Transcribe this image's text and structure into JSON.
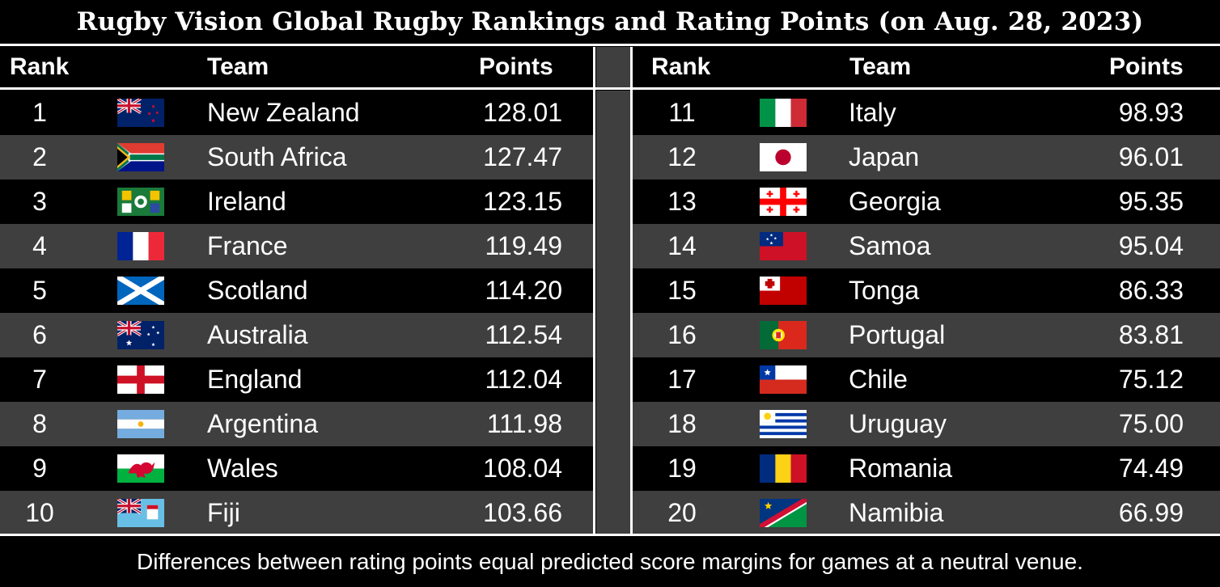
{
  "title": "Rugby Vision Global Rugby Rankings and Rating Points (on Aug. 28, 2023)",
  "headers": {
    "rank": "Rank",
    "team": "Team",
    "points": "Points"
  },
  "footer": "Differences between rating points equal predicted score margins for games at a neutral venue.",
  "colors": {
    "background": "#000000",
    "alt_row": "#3f3f3f",
    "text": "#ffffff"
  },
  "chart_data": {
    "type": "table",
    "columns": [
      "Rank",
      "Team",
      "Points"
    ],
    "rows": [
      {
        "rank": "1",
        "team": "New Zealand",
        "points": "128.01",
        "flag": "new-zealand-flag-icon"
      },
      {
        "rank": "2",
        "team": "South Africa",
        "points": "127.47",
        "flag": "south-africa-flag-icon"
      },
      {
        "rank": "3",
        "team": "Ireland",
        "points": "123.15",
        "flag": "ireland-flag-icon"
      },
      {
        "rank": "4",
        "team": "France",
        "points": "119.49",
        "flag": "france-flag-icon"
      },
      {
        "rank": "5",
        "team": "Scotland",
        "points": "114.20",
        "flag": "scotland-flag-icon"
      },
      {
        "rank": "6",
        "team": "Australia",
        "points": "112.54",
        "flag": "australia-flag-icon"
      },
      {
        "rank": "7",
        "team": "England",
        "points": "112.04",
        "flag": "england-flag-icon"
      },
      {
        "rank": "8",
        "team": "Argentina",
        "points": "111.98",
        "flag": "argentina-flag-icon"
      },
      {
        "rank": "9",
        "team": "Wales",
        "points": "108.04",
        "flag": "wales-flag-icon"
      },
      {
        "rank": "10",
        "team": "Fiji",
        "points": "103.66",
        "flag": "fiji-flag-icon"
      },
      {
        "rank": "11",
        "team": "Italy",
        "points": "98.93",
        "flag": "italy-flag-icon"
      },
      {
        "rank": "12",
        "team": "Japan",
        "points": "96.01",
        "flag": "japan-flag-icon"
      },
      {
        "rank": "13",
        "team": "Georgia",
        "points": "95.35",
        "flag": "georgia-flag-icon"
      },
      {
        "rank": "14",
        "team": "Samoa",
        "points": "95.04",
        "flag": "samoa-flag-icon"
      },
      {
        "rank": "15",
        "team": "Tonga",
        "points": "86.33",
        "flag": "tonga-flag-icon"
      },
      {
        "rank": "16",
        "team": "Portugal",
        "points": "83.81",
        "flag": "portugal-flag-icon"
      },
      {
        "rank": "17",
        "team": "Chile",
        "points": "75.12",
        "flag": "chile-flag-icon"
      },
      {
        "rank": "18",
        "team": "Uruguay",
        "points": "75.00",
        "flag": "uruguay-flag-icon"
      },
      {
        "rank": "19",
        "team": "Romania",
        "points": "74.49",
        "flag": "romania-flag-icon"
      },
      {
        "rank": "20",
        "team": "Namibia",
        "points": "66.99",
        "flag": "namibia-flag-icon"
      }
    ]
  }
}
